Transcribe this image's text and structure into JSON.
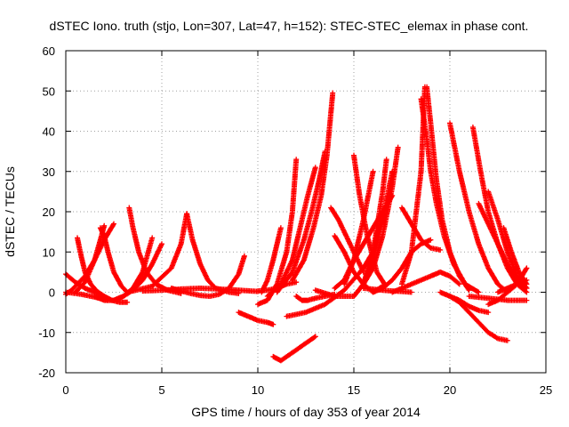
{
  "chart_data": {
    "type": "scatter",
    "title": "dSTEC Iono. truth (stjo, Lon=307, Lat=47, h=152): STEC-STEC_elemax in phase cont.",
    "xlabel": "GPS time / hours of day 353 of year 2014",
    "ylabel": "dSTEC  / TECUs",
    "xlim": [
      0,
      25
    ],
    "ylim": [
      -20,
      60
    ],
    "xticks": [
      0,
      5,
      10,
      15,
      20,
      25
    ],
    "yticks": [
      -20,
      -10,
      0,
      10,
      20,
      30,
      40,
      50,
      60
    ],
    "grid": true,
    "marker": "+",
    "color": "#ff0000",
    "series": [
      {
        "x": [
          0.0,
          0.5,
          1.0,
          1.5,
          2.0
        ],
        "y": [
          4.5,
          2.5,
          1.0,
          0.0,
          -1.0
        ]
      },
      {
        "x": [
          0.0,
          0.8,
          1.5,
          2.2
        ],
        "y": [
          0.0,
          -0.5,
          -1.2,
          -2.0
        ]
      },
      {
        "x": [
          0.0,
          0.3,
          0.6,
          1.0,
          1.5,
          2.0,
          2.5
        ],
        "y": [
          -0.5,
          0.5,
          2.0,
          4.0,
          8.0,
          13.0,
          17.0
        ]
      },
      {
        "x": [
          0.6,
          0.8,
          1.0,
          1.3,
          1.6,
          2.0,
          2.4,
          2.8,
          3.2
        ],
        "y": [
          13.5,
          9.0,
          5.0,
          2.0,
          0.3,
          -1.0,
          -2.0,
          -2.5,
          -2.5
        ]
      },
      {
        "x": [
          0.5,
          1.0,
          1.5,
          1.8,
          2.0
        ],
        "y": [
          0.0,
          2.5,
          8.0,
          13.0,
          16.5
        ]
      },
      {
        "x": [
          1.8,
          2.0,
          2.2,
          2.5,
          2.9,
          3.2
        ],
        "y": [
          16.0,
          14.0,
          10.0,
          5.0,
          1.5,
          0.0
        ]
      },
      {
        "x": [
          1.5,
          2.0,
          2.5,
          3.0,
          3.5,
          4.0,
          4.5
        ],
        "y": [
          -1.0,
          -2.0,
          -2.0,
          -1.0,
          1.0,
          5.0,
          13.5
        ]
      },
      {
        "x": [
          3.3,
          3.5,
          3.8,
          4.2,
          4.7,
          5.3,
          6.0
        ],
        "y": [
          21.0,
          16.0,
          10.0,
          5.0,
          2.0,
          0.5,
          -0.3
        ]
      },
      {
        "x": [
          2.5,
          3.0,
          3.5,
          4.0,
          4.5,
          5.0
        ],
        "y": [
          -2.0,
          -1.0,
          0.5,
          3.0,
          7.0,
          12.0
        ]
      },
      {
        "x": [
          3.5,
          4.5,
          5.5,
          6.0,
          6.3
        ],
        "y": [
          0.3,
          1.5,
          6.0,
          12.0,
          19.5
        ]
      },
      {
        "x": [
          6.3,
          6.6,
          7.0,
          7.4,
          7.8,
          8.5,
          9.0
        ],
        "y": [
          19.5,
          13.0,
          7.0,
          3.0,
          1.0,
          0.0,
          -0.3
        ]
      },
      {
        "x": [
          5.5,
          6.0,
          6.5,
          7.0,
          7.5,
          8.0,
          8.5,
          9.0,
          9.3
        ],
        "y": [
          1.0,
          0.3,
          -0.3,
          -0.8,
          -1.0,
          -0.5,
          1.0,
          4.5,
          9.0
        ]
      },
      {
        "x": [
          4.0,
          5.0,
          6.0,
          7.0,
          8.0,
          9.0,
          10.0
        ],
        "y": [
          0.3,
          0.5,
          0.8,
          1.0,
          0.8,
          0.5,
          0.2
        ]
      },
      {
        "x": [
          9.0,
          9.5,
          10.0,
          10.5,
          10.8
        ],
        "y": [
          -5.0,
          -6.0,
          -7.0,
          -7.5,
          -8.0
        ]
      },
      {
        "x": [
          10.0,
          10.5,
          11.0,
          11.5,
          12.0
        ],
        "y": [
          0.3,
          0.5,
          1.0,
          2.0,
          2.5
        ]
      },
      {
        "x": [
          10.2,
          10.5,
          10.8,
          11.0,
          11.2
        ],
        "y": [
          0.0,
          3.0,
          8.0,
          12.0,
          16.0
        ]
      },
      {
        "x": [
          10.0,
          10.5,
          11.0,
          11.5,
          11.8,
          12.0
        ],
        "y": [
          -3.0,
          -2.0,
          2.0,
          10.0,
          20.0,
          33.0
        ]
      },
      {
        "x": [
          10.5,
          11.2,
          11.8,
          12.2,
          12.6,
          13.0
        ],
        "y": [
          -1.0,
          2.0,
          8.0,
          16.0,
          24.0,
          31.0
        ]
      },
      {
        "x": [
          11.0,
          11.8,
          12.4,
          12.8,
          13.2,
          13.5
        ],
        "y": [
          0.0,
          5.0,
          13.0,
          20.0,
          28.0,
          35.0
        ]
      },
      {
        "x": [
          11.8,
          12.4,
          12.9,
          13.3,
          13.6,
          13.9
        ],
        "y": [
          3.0,
          8.0,
          16.0,
          24.0,
          34.0,
          49.5
        ]
      },
      {
        "x": [
          10.8,
          11.2,
          11.8,
          12.4,
          13.0
        ],
        "y": [
          -16.0,
          -17.0,
          -15.0,
          -13.0,
          -11.0
        ]
      },
      {
        "x": [
          12.0,
          12.3,
          12.6,
          13.0,
          13.5,
          14.0
        ],
        "y": [
          -1.0,
          -2.0,
          -2.0,
          -1.5,
          -1.0,
          -0.5
        ]
      },
      {
        "x": [
          11.5,
          12.5,
          13.5,
          14.5,
          15.5,
          16.0
        ],
        "y": [
          -6.0,
          -5.0,
          -3.0,
          0.5,
          6.0,
          10.0
        ]
      },
      {
        "x": [
          13.8,
          14.2,
          14.8,
          15.5
        ],
        "y": [
          21.0,
          18.0,
          12.0,
          5.0
        ]
      },
      {
        "x": [
          14.0,
          14.5,
          15.0,
          15.5,
          16.0,
          16.5
        ],
        "y": [
          14.0,
          10.0,
          5.0,
          2.0,
          0.0,
          1.5
        ]
      },
      {
        "x": [
          13.0,
          14.0,
          15.0,
          15.5,
          16.0,
          16.5,
          17.0
        ],
        "y": [
          0.5,
          -1.0,
          -1.0,
          2.0,
          8.0,
          18.0,
          30.0
        ]
      },
      {
        "x": [
          14.0,
          14.5,
          15.0,
          15.5,
          16.0,
          16.5,
          17.0
        ],
        "y": [
          1.0,
          3.0,
          8.0,
          12.0,
          16.0,
          20.0,
          24.0
        ]
      },
      {
        "x": [
          15.0,
          15.3,
          15.7,
          16.2,
          16.6
        ],
        "y": [
          34.0,
          24.0,
          14.0,
          5.0,
          2.0
        ]
      },
      {
        "x": [
          15.0,
          15.5,
          16.0,
          16.5
        ],
        "y": [
          -1.0,
          2.0,
          10.0,
          20.0
        ]
      },
      {
        "x": [
          15.5,
          16.0,
          16.5,
          16.7
        ],
        "y": [
          2.0,
          10.0,
          25.0,
          33.0
        ]
      },
      {
        "x": [
          14.5,
          15.0,
          15.5,
          16.0
        ],
        "y": [
          2.0,
          8.0,
          18.0,
          30.0
        ]
      },
      {
        "x": [
          15.5,
          16.0,
          16.5,
          17.0,
          17.3
        ],
        "y": [
          2.0,
          6.0,
          14.0,
          26.0,
          36.0
        ]
      },
      {
        "x": [
          17.5,
          18.0,
          18.5,
          19.0,
          19.5
        ],
        "y": [
          21.0,
          17.0,
          13.0,
          11.0,
          10.5
        ]
      },
      {
        "x": [
          16.0,
          16.5,
          17.0,
          17.5,
          18.0,
          18.5,
          19.0
        ],
        "y": [
          0.0,
          1.0,
          3.0,
          6.0,
          10.0,
          12.0,
          13.0
        ]
      },
      {
        "x": [
          15.5,
          16.5,
          17.0,
          17.5,
          18.0
        ],
        "y": [
          1.0,
          0.5,
          0.3,
          0.2,
          0.0
        ]
      },
      {
        "x": [
          17.5,
          18.0,
          18.5,
          18.7
        ],
        "y": [
          2.0,
          10.0,
          30.0,
          51.0
        ]
      },
      {
        "x": [
          18.8,
          19.0,
          19.3,
          19.6,
          20.0,
          20.5,
          21.0
        ],
        "y": [
          51.0,
          42.0,
          28.0,
          18.0,
          10.0,
          4.0,
          0.5
        ]
      },
      {
        "x": [
          18.5,
          18.8,
          19.0,
          19.3,
          19.7,
          20.2,
          20.8,
          21.5
        ],
        "y": [
          48.0,
          38.0,
          30.0,
          22.0,
          14.0,
          7.0,
          2.0,
          0.0
        ]
      },
      {
        "x": [
          17.0,
          18.0,
          19.0,
          19.5,
          20.0,
          20.5
        ],
        "y": [
          0.0,
          2.0,
          4.0,
          5.0,
          4.0,
          2.0
        ]
      },
      {
        "x": [
          20.0,
          20.5,
          21.0,
          21.5,
          22.0,
          22.5,
          23.0
        ],
        "y": [
          42.0,
          30.0,
          20.0,
          12.0,
          6.0,
          2.0,
          0.0
        ]
      },
      {
        "x": [
          21.2,
          21.6,
          22.0,
          22.5,
          23.0,
          23.5,
          24.0
        ],
        "y": [
          41.0,
          30.0,
          20.0,
          12.0,
          6.0,
          2.0,
          0.0
        ]
      },
      {
        "x": [
          21.5,
          22.0,
          22.5,
          23.0,
          23.5,
          24.0
        ],
        "y": [
          22.0,
          17.0,
          12.0,
          7.0,
          3.0,
          1.0
        ]
      },
      {
        "x": [
          22.0,
          22.5,
          23.0,
          23.5,
          24.0
        ],
        "y": [
          25.0,
          18.0,
          10.0,
          4.0,
          1.0
        ]
      },
      {
        "x": [
          22.8,
          23.2,
          23.6,
          24.0
        ],
        "y": [
          16.0,
          10.0,
          5.0,
          2.0
        ]
      },
      {
        "x": [
          19.5,
          20.0,
          20.5,
          21.0,
          21.5,
          22.0
        ],
        "y": [
          0.0,
          -1.0,
          -2.0,
          -3.5,
          -4.5,
          -5.0
        ]
      },
      {
        "x": [
          20.0,
          20.5,
          21.0,
          21.5,
          22.0,
          22.5,
          23.0
        ],
        "y": [
          -1.0,
          -2.5,
          -5.0,
          -7.5,
          -10.0,
          -11.5,
          -12.0
        ]
      },
      {
        "x": [
          22.0,
          22.5,
          23.0,
          23.5,
          24.0
        ],
        "y": [
          -3.0,
          -2.0,
          0.0,
          2.0,
          6.0
        ]
      },
      {
        "x": [
          21.0,
          22.0,
          23.0,
          24.0
        ],
        "y": [
          -1.0,
          -1.5,
          -2.0,
          -2.0
        ]
      },
      {
        "x": [
          22.5,
          23.0,
          23.5,
          24.0
        ],
        "y": [
          0.0,
          1.0,
          2.0,
          3.0
        ]
      }
    ]
  }
}
